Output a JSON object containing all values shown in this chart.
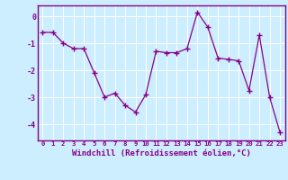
{
  "x": [
    0,
    1,
    2,
    3,
    4,
    5,
    6,
    7,
    8,
    9,
    10,
    11,
    12,
    13,
    14,
    15,
    16,
    17,
    18,
    19,
    20,
    21,
    22,
    23
  ],
  "y": [
    -0.6,
    -0.6,
    -1.0,
    -1.2,
    -1.2,
    -2.1,
    -3.0,
    -2.85,
    -3.3,
    -3.55,
    -2.9,
    -1.3,
    -1.35,
    -1.35,
    -1.2,
    0.15,
    -0.4,
    -1.55,
    -1.6,
    -1.65,
    -2.75,
    -0.7,
    -3.0,
    -4.3
  ],
  "line_color": "#880088",
  "marker": "+",
  "markersize": 4,
  "markeredgewidth": 1.0,
  "linewidth": 0.9,
  "xlabel": "Windchill (Refroidissement éolien,°C)",
  "xlabel_fontsize": 6.5,
  "xlim": [
    -0.5,
    23.5
  ],
  "ylim": [
    -4.6,
    0.4
  ],
  "yticks": [
    0,
    -1,
    -2,
    -3,
    -4
  ],
  "xtick_fontsize": 5.2,
  "ytick_fontsize": 6.0,
  "bg_color": "#cceeff",
  "grid_color": "#ffffff",
  "grid_linewidth": 0.7,
  "label_color": "#880088",
  "spine_color": "#880088"
}
